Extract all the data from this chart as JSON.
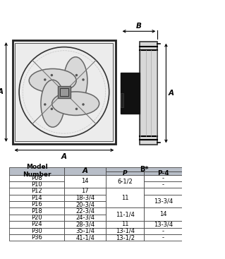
{
  "figsize": [
    3.19,
    3.67
  ],
  "dpi": 100,
  "header_bg": "#b8bec8",
  "subheader_bg": "#c8ced8",
  "row_bg": "#ffffff",
  "border_color": "#444444",
  "text_color": "#000000",
  "rows": [
    {
      "model": "P08",
      "A": "",
      "P": "",
      "P4": "-"
    },
    {
      "model": "P10",
      "A": "",
      "P": "",
      "P4": "-"
    },
    {
      "model": "P12",
      "A": "17",
      "P": "",
      "P4": ""
    },
    {
      "model": "P14",
      "A": "18-3/4",
      "P": "",
      "P4": ""
    },
    {
      "model": "P16",
      "A": "20-3/4",
      "P": "",
      "P4": ""
    },
    {
      "model": "P18",
      "A": "22-3/4",
      "P": "",
      "P4": ""
    },
    {
      "model": "P20",
      "A": "24-3/4",
      "P": "",
      "P4": ""
    },
    {
      "model": "P24",
      "A": "28-3/4",
      "P": "11",
      "P4": "13-3/4"
    },
    {
      "model": "P30",
      "A": "35-1/4",
      "P": "13-1/4",
      "P4": "-"
    },
    {
      "model": "P36",
      "A": "41-1/4",
      "P": "13-1/2",
      "P4": "-"
    }
  ],
  "merged_A": [
    [
      0,
      2,
      "14"
    ]
  ],
  "merged_P": [
    [
      0,
      2,
      "6-1/2"
    ],
    [
      2,
      5,
      "11"
    ],
    [
      5,
      7,
      "11-1/4"
    ]
  ],
  "merged_P4": [
    [
      3,
      5,
      "13-3/4"
    ],
    [
      5,
      7,
      "14"
    ]
  ]
}
